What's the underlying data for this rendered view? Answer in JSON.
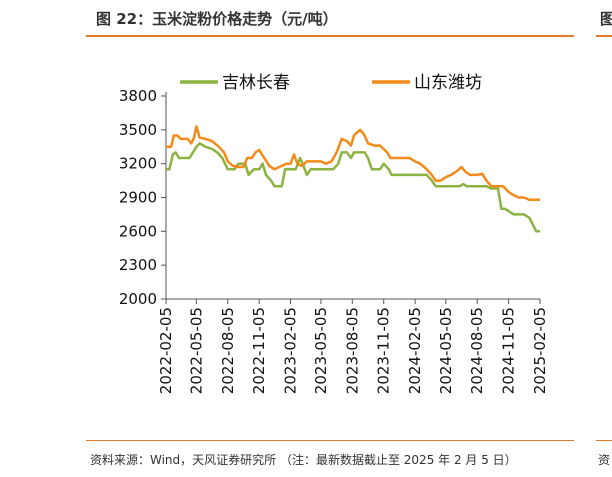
{
  "figure": {
    "caption": "图 22：玉米淀粉价格走势（元/吨）",
    "caption_right_fragment": "图",
    "source": "资料来源：Wind，天风证券研究所  （注：最新数据截止至 2025 年 2 月 5 日）",
    "source_right_fragment": "资"
  },
  "colors": {
    "accent_rule": "#e3792c",
    "series_jilin": "#8bb33f",
    "series_shandong": "#f38a1a"
  },
  "chart_data": {
    "type": "line",
    "ylim": [
      2000,
      3800
    ],
    "y_ticks": [
      "2000",
      "2300",
      "2600",
      "2900",
      "3200",
      "3500",
      "3800"
    ],
    "x_ticks": [
      "2022-02-05",
      "2022-05-05",
      "2022-08-05",
      "2022-11-05",
      "2023-02-05",
      "2023-05-05",
      "2023-08-05",
      "2023-11-05",
      "2024-02-05",
      "2024-05-05",
      "2024-08-05",
      "2024-11-05",
      "2025-02-05"
    ],
    "legend_position": "top",
    "grid": false,
    "series": [
      {
        "name": "吉林长春",
        "points": [
          [
            "2022-02-05",
            3150
          ],
          [
            "2022-02-15",
            3150
          ],
          [
            "2022-02-25",
            3280
          ],
          [
            "2022-03-05",
            3300
          ],
          [
            "2022-03-15",
            3250
          ],
          [
            "2022-04-15",
            3250
          ],
          [
            "2022-05-05",
            3350
          ],
          [
            "2022-05-15",
            3380
          ],
          [
            "2022-06-01",
            3350
          ],
          [
            "2022-06-20",
            3330
          ],
          [
            "2022-07-05",
            3300
          ],
          [
            "2022-07-20",
            3250
          ],
          [
            "2022-08-05",
            3150
          ],
          [
            "2022-08-25",
            3150
          ],
          [
            "2022-09-05",
            3200
          ],
          [
            "2022-09-25",
            3200
          ],
          [
            "2022-10-05",
            3100
          ],
          [
            "2022-10-20",
            3150
          ],
          [
            "2022-11-05",
            3150
          ],
          [
            "2022-11-15",
            3200
          ],
          [
            "2022-11-25",
            3100
          ],
          [
            "2022-12-10",
            3050
          ],
          [
            "2022-12-20",
            3000
          ],
          [
            "2023-01-10",
            3000
          ],
          [
            "2023-01-20",
            3150
          ],
          [
            "2023-02-05",
            3150
          ],
          [
            "2023-02-20",
            3150
          ],
          [
            "2023-03-05",
            3250
          ],
          [
            "2023-03-15",
            3180
          ],
          [
            "2023-03-25",
            3100
          ],
          [
            "2023-04-05",
            3150
          ],
          [
            "2023-05-05",
            3150
          ],
          [
            "2023-06-10",
            3150
          ],
          [
            "2023-06-25",
            3200
          ],
          [
            "2023-07-05",
            3300
          ],
          [
            "2023-07-20",
            3300
          ],
          [
            "2023-08-01",
            3250
          ],
          [
            "2023-08-10",
            3300
          ],
          [
            "2023-08-20",
            3300
          ],
          [
            "2023-09-10",
            3300
          ],
          [
            "2023-09-20",
            3250
          ],
          [
            "2023-10-01",
            3150
          ],
          [
            "2023-10-25",
            3150
          ],
          [
            "2023-11-05",
            3200
          ],
          [
            "2023-11-20",
            3150
          ],
          [
            "2023-11-28",
            3100
          ],
          [
            "2024-01-15",
            3100
          ],
          [
            "2024-02-05",
            3100
          ],
          [
            "2024-03-10",
            3100
          ],
          [
            "2024-03-25",
            3050
          ],
          [
            "2024-04-05",
            3000
          ],
          [
            "2024-05-05",
            3000
          ],
          [
            "2024-06-15",
            3000
          ],
          [
            "2024-06-25",
            3020
          ],
          [
            "2024-07-05",
            3000
          ],
          [
            "2024-08-05",
            3000
          ],
          [
            "2024-09-01",
            3000
          ],
          [
            "2024-09-15",
            2980
          ],
          [
            "2024-10-05",
            2980
          ],
          [
            "2024-10-15",
            2800
          ],
          [
            "2024-10-25",
            2800
          ],
          [
            "2024-11-05",
            2780
          ],
          [
            "2024-11-20",
            2750
          ],
          [
            "2024-12-20",
            2750
          ],
          [
            "2025-01-05",
            2720
          ],
          [
            "2025-01-25",
            2600
          ],
          [
            "2025-02-05",
            2600
          ]
        ]
      },
      {
        "name": "山东潍坊",
        "points": [
          [
            "2022-02-05",
            3350
          ],
          [
            "2022-02-20",
            3350
          ],
          [
            "2022-02-28",
            3450
          ],
          [
            "2022-03-10",
            3450
          ],
          [
            "2022-03-20",
            3420
          ],
          [
            "2022-04-10",
            3420
          ],
          [
            "2022-04-20",
            3380
          ],
          [
            "2022-04-28",
            3430
          ],
          [
            "2022-05-05",
            3530
          ],
          [
            "2022-05-15",
            3430
          ],
          [
            "2022-06-01",
            3420
          ],
          [
            "2022-06-20",
            3400
          ],
          [
            "2022-07-10",
            3350
          ],
          [
            "2022-07-25",
            3300
          ],
          [
            "2022-08-05",
            3220
          ],
          [
            "2022-08-20",
            3180
          ],
          [
            "2022-09-05",
            3170
          ],
          [
            "2022-09-20",
            3170
          ],
          [
            "2022-10-01",
            3250
          ],
          [
            "2022-10-15",
            3250
          ],
          [
            "2022-10-25",
            3300
          ],
          [
            "2022-11-05",
            3320
          ],
          [
            "2022-11-20",
            3250
          ],
          [
            "2022-12-05",
            3180
          ],
          [
            "2022-12-20",
            3150
          ],
          [
            "2023-01-10",
            3180
          ],
          [
            "2023-01-25",
            3200
          ],
          [
            "2023-02-05",
            3200
          ],
          [
            "2023-02-15",
            3280
          ],
          [
            "2023-02-25",
            3200
          ],
          [
            "2023-03-10",
            3180
          ],
          [
            "2023-03-25",
            3220
          ],
          [
            "2023-04-10",
            3220
          ],
          [
            "2023-05-05",
            3220
          ],
          [
            "2023-05-20",
            3200
          ],
          [
            "2023-06-05",
            3220
          ],
          [
            "2023-06-20",
            3300
          ],
          [
            "2023-07-05",
            3420
          ],
          [
            "2023-07-20",
            3400
          ],
          [
            "2023-08-01",
            3360
          ],
          [
            "2023-08-10",
            3450
          ],
          [
            "2023-08-20",
            3480
          ],
          [
            "2023-08-28",
            3500
          ],
          [
            "2023-09-10",
            3450
          ],
          [
            "2023-09-20",
            3380
          ],
          [
            "2023-10-10",
            3360
          ],
          [
            "2023-10-25",
            3360
          ],
          [
            "2023-11-05",
            3330
          ],
          [
            "2023-11-15",
            3300
          ],
          [
            "2023-11-25",
            3250
          ],
          [
            "2023-12-10",
            3250
          ],
          [
            "2024-01-20",
            3250
          ],
          [
            "2024-02-05",
            3220
          ],
          [
            "2024-02-20",
            3200
          ],
          [
            "2024-03-10",
            3150
          ],
          [
            "2024-03-25",
            3100
          ],
          [
            "2024-04-05",
            3050
          ],
          [
            "2024-04-20",
            3050
          ],
          [
            "2024-05-05",
            3080
          ],
          [
            "2024-05-20",
            3100
          ],
          [
            "2024-06-05",
            3130
          ],
          [
            "2024-06-20",
            3170
          ],
          [
            "2024-07-01",
            3130
          ],
          [
            "2024-07-15",
            3100
          ],
          [
            "2024-08-05",
            3100
          ],
          [
            "2024-08-20",
            3110
          ],
          [
            "2024-09-01",
            3050
          ],
          [
            "2024-09-15",
            3000
          ],
          [
            "2024-10-05",
            3000
          ],
          [
            "2024-10-20",
            3000
          ],
          [
            "2024-11-05",
            2950
          ],
          [
            "2024-11-20",
            2920
          ],
          [
            "2024-12-05",
            2900
          ],
          [
            "2024-12-20",
            2900
          ],
          [
            "2025-01-05",
            2880
          ],
          [
            "2025-01-25",
            2880
          ],
          [
            "2025-02-05",
            2880
          ]
        ]
      }
    ]
  }
}
